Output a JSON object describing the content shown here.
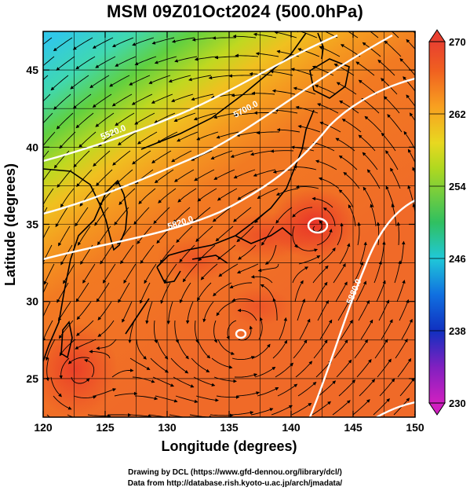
{
  "title": "MSM 09Z01Oct2024 (500.0hPa)",
  "x_axis": {
    "label": "Longitude (degrees)",
    "ticks": [
      "120",
      "125",
      "130",
      "135",
      "140",
      "145",
      "150"
    ],
    "range": [
      120,
      150
    ]
  },
  "y_axis": {
    "label": "Latitude  (degrees)",
    "ticks": [
      "25",
      "30",
      "35",
      "40",
      "45"
    ],
    "range": [
      22.5,
      47.5
    ]
  },
  "colorbar": {
    "ticks": [
      "230",
      "238",
      "246",
      "254",
      "262",
      "270"
    ],
    "range": [
      230,
      270
    ],
    "colors": [
      "#d020c0",
      "#8020c0",
      "#1030c0",
      "#1090e0",
      "#20d0d0",
      "#30c060",
      "#80d020",
      "#d8e020",
      "#f8b020",
      "#f07020",
      "#e84020",
      "#e02030"
    ]
  },
  "contours": [
    {
      "label": "5520.0"
    },
    {
      "label": "5700.0"
    },
    {
      "label": "5820.0"
    },
    {
      "label": "5880.0"
    },
    {
      "label": "5940.0"
    }
  ],
  "credits": {
    "line1": "Drawing by DCL (https://www.gfd-dennou.org/library/dcl/)",
    "line2": "Data from http://database.rish.kyoto-u.ac.jp/arch/jmadata/"
  }
}
